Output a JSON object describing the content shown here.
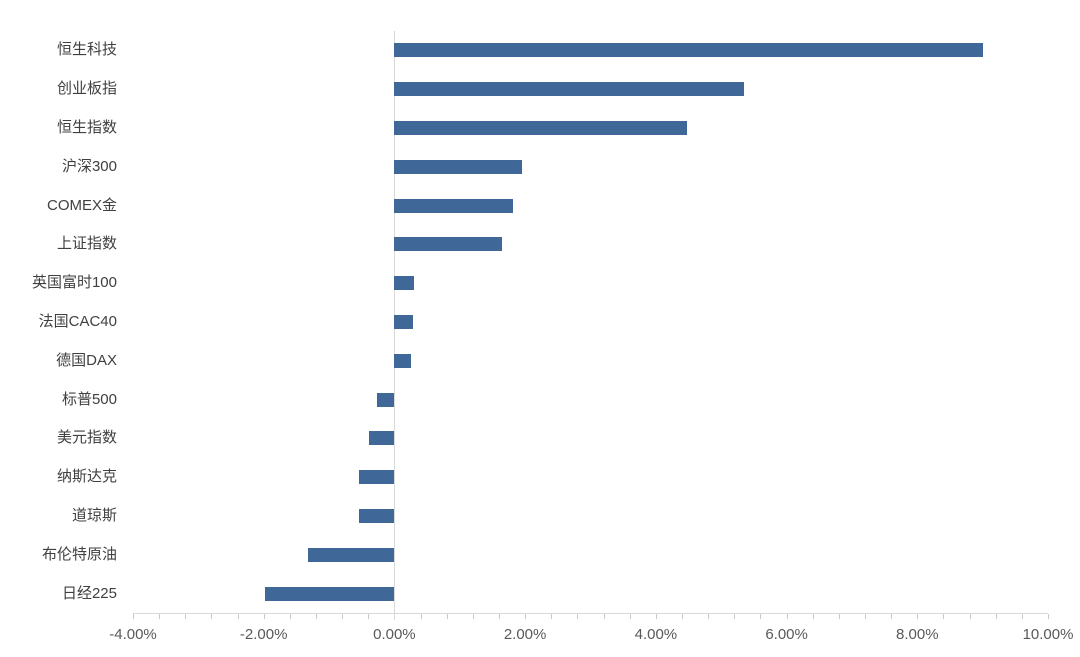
{
  "chart_data": {
    "type": "bar",
    "orientation": "horizontal",
    "title": "",
    "xlabel": "",
    "ylabel": "",
    "categories": [
      "恒生科技",
      "创业板指",
      "恒生指数",
      "沪深300",
      "COMEX金",
      "上证指数",
      "英国富时100",
      "法国CAC40",
      "德国DAX",
      "标普500",
      "美元指数",
      "纳斯达克",
      "道琼斯",
      "布伦特原油",
      "日经225"
    ],
    "values": [
      9.01,
      5.35,
      4.48,
      1.96,
      1.81,
      1.64,
      0.3,
      0.28,
      0.25,
      -0.26,
      -0.39,
      -0.54,
      -0.55,
      -1.32,
      -1.98
    ],
    "value_unit": "%",
    "xlim": [
      -4,
      10
    ],
    "x_tick_values": [
      -4,
      -2,
      0,
      2,
      4,
      6,
      8,
      10
    ],
    "x_tick_labels": [
      "-4.00%",
      "-2.00%",
      "0.00%",
      "2.00%",
      "4.00%",
      "6.00%",
      "8.00%",
      "10.00%"
    ],
    "minor_tick_step": 0.4,
    "grid": false,
    "legend": false,
    "colors": {
      "bar": "#3f6899",
      "axis_line": "#d9d9d9",
      "tick": "#c9c9c9",
      "category_label": "#404040",
      "axis_label": "#595959",
      "background": "#ffffff"
    }
  }
}
